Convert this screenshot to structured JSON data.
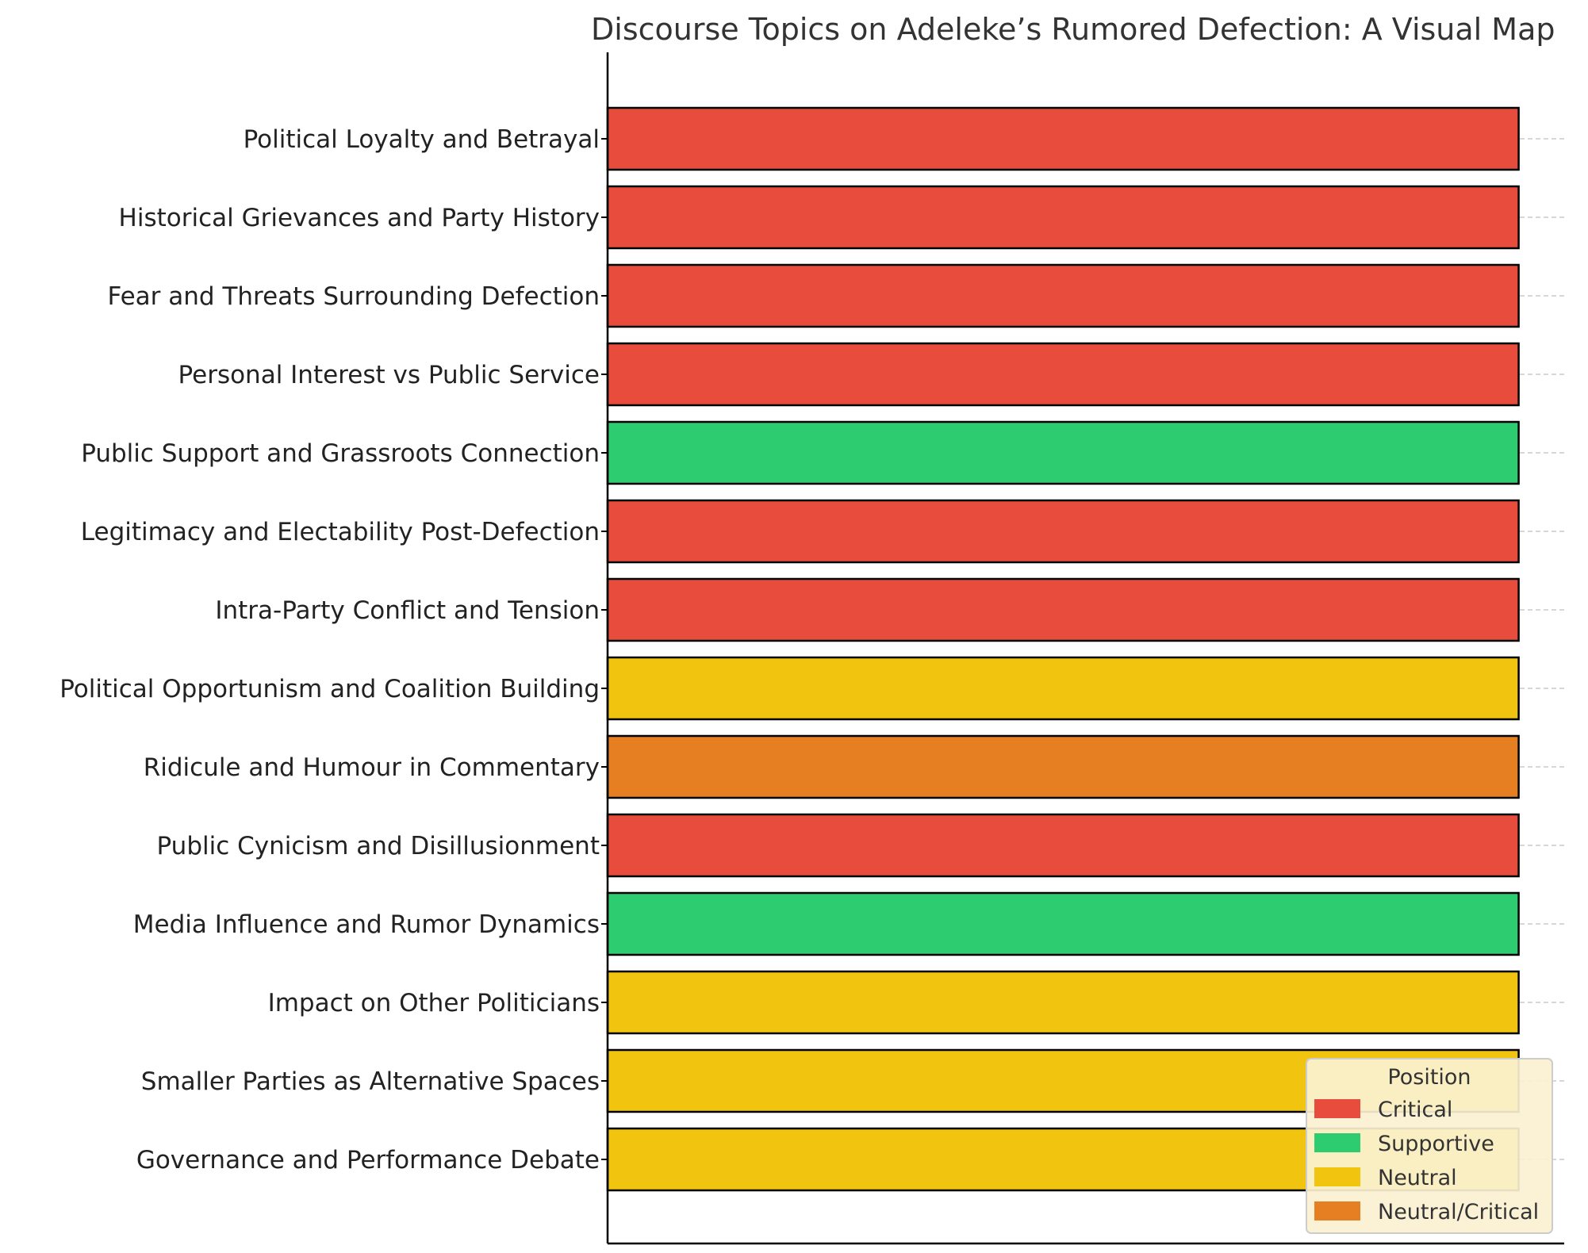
{
  "chart_data": {
    "type": "bar",
    "orientation": "horizontal",
    "title": "Discourse Topics on Adeleke’s Rumored Defection: A Visual Map",
    "xlabel": "",
    "ylabel": "",
    "categories": [
      "Political Loyalty and Betrayal",
      "Historical Grievances and Party History",
      "Fear and Threats Surrounding Defection",
      "Personal Interest vs Public Service",
      "Public Support and Grassroots Connection",
      "Legitimacy and Electability Post-Defection",
      "Intra-Party Conflict and Tension",
      "Political Opportunism and Coalition Building",
      "Ridicule and Humour in Commentary",
      "Public Cynicism and Disillusionment",
      "Media Influence and Rumor Dynamics",
      "Impact on Other Politicians",
      "Smaller Parties as Alternative Spaces",
      "Governance and Performance Debate"
    ],
    "values": [
      1,
      1,
      1,
      1,
      1,
      1,
      1,
      1,
      1,
      1,
      1,
      1,
      1,
      1
    ],
    "positions": [
      "Critical",
      "Critical",
      "Critical",
      "Critical",
      "Supportive",
      "Critical",
      "Critical",
      "Neutral",
      "Neutral/Critical",
      "Critical",
      "Supportive",
      "Neutral",
      "Neutral",
      "Neutral"
    ],
    "xlim": [
      0,
      1.05
    ],
    "grid": "horizontal dashed",
    "legend": {
      "title": "Position",
      "placement": "bottom-right",
      "entries": [
        {
          "label": "Critical",
          "color": "#e74c3c"
        },
        {
          "label": "Supportive",
          "color": "#2ecc71"
        },
        {
          "label": "Neutral",
          "color": "#f1c40f"
        },
        {
          "label": "Neutral/Critical",
          "color": "#e67e22"
        }
      ]
    }
  }
}
